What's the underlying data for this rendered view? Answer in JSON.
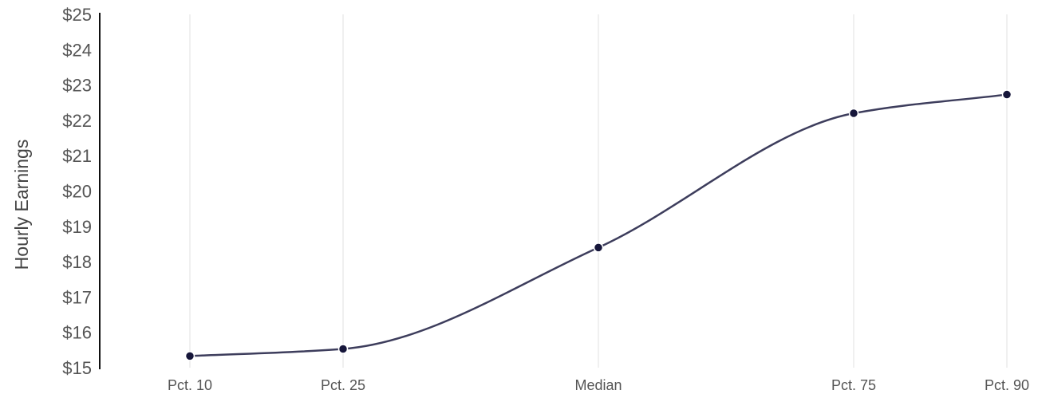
{
  "chart_data": {
    "type": "line",
    "title": "",
    "xlabel": "",
    "ylabel": "Hourly Earnings",
    "categories": [
      "Pct. 10",
      "Pct. 25",
      "Median",
      "Pct. 75",
      "Pct. 90"
    ],
    "x": [
      10,
      25,
      50,
      75,
      90
    ],
    "series": [
      {
        "values": [
          15.33,
          15.53,
          18.4,
          22.2,
          22.73
        ]
      }
    ],
    "ylim": [
      15,
      25
    ],
    "yticks": [
      15,
      16,
      17,
      18,
      19,
      20,
      21,
      22,
      23,
      24,
      25
    ],
    "ytick_labels": [
      "$15",
      "$16",
      "$17",
      "$18",
      "$19",
      "$20",
      "$21",
      "$22",
      "$23",
      "$24",
      "$25"
    ],
    "grid": "vertical",
    "line_color": "#3d3d5c",
    "point_color": "#16163a",
    "axis_color": "#111111",
    "grid_color": "#ececec"
  }
}
